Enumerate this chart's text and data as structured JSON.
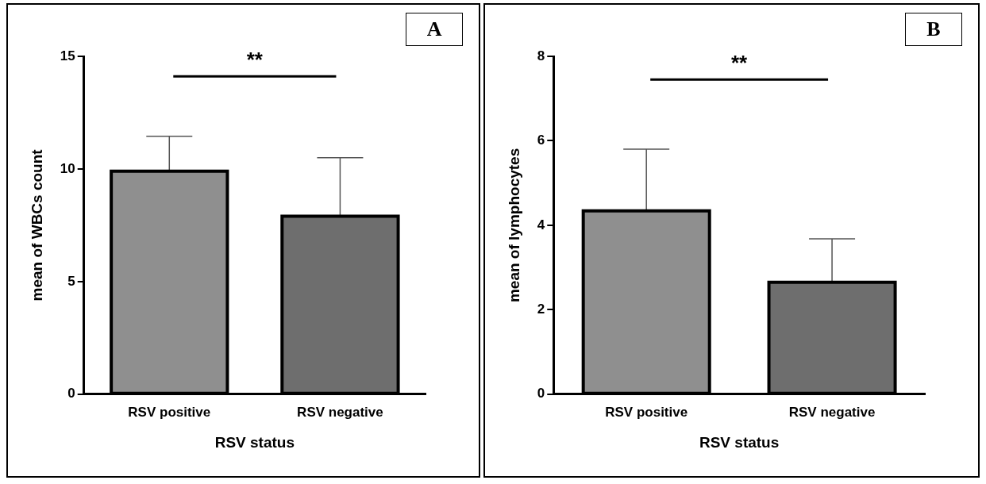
{
  "chart_data": [
    {
      "type": "bar",
      "title": "A",
      "xlabel": "RSV status",
      "ylabel": "mean of WBCs count",
      "categories": [
        "RSV positive",
        "RSV negative"
      ],
      "values": [
        9.9,
        7.9
      ],
      "errors": [
        [
          9.9,
          11.45
        ],
        [
          7.9,
          10.5
        ]
      ],
      "colors": [
        "#8f8f8f",
        "#6e6e6e"
      ],
      "ylim": [
        0,
        15
      ],
      "yticks": [
        0,
        5,
        10,
        15
      ],
      "grid": false,
      "annotations": [
        "**"
      ]
    },
    {
      "type": "bar",
      "title": "B",
      "xlabel": "RSV status",
      "ylabel": "mean of lymphocytes",
      "categories": [
        "RSV positive",
        "RSV negative"
      ],
      "values": [
        4.34,
        2.65
      ],
      "errors": [
        [
          4.34,
          5.8
        ],
        [
          2.65,
          3.68
        ]
      ],
      "colors": [
        "#8f8f8f",
        "#6e6e6e"
      ],
      "ylim": [
        0,
        8
      ],
      "yticks": [
        0,
        2,
        4,
        6,
        8
      ],
      "grid": false,
      "annotations": [
        "**"
      ]
    }
  ]
}
